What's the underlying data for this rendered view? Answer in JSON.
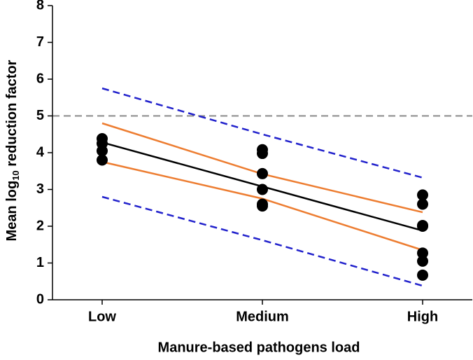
{
  "chart_data": {
    "type": "scatter",
    "xlabel": "Manure-based pathogens load",
    "ylabel": {
      "main": "Mean log",
      "sub": "10",
      "rest": " reduction factor"
    },
    "xlim": [
      0.69,
      3.31
    ],
    "xticks": [
      {
        "value": 1,
        "label": "Low"
      },
      {
        "value": 2,
        "label": "Medium"
      },
      {
        "value": 3,
        "label": "High"
      }
    ],
    "ylim": [
      0,
      8
    ],
    "yticks": [
      0,
      1,
      2,
      3,
      4,
      5,
      6,
      7,
      8
    ],
    "points": {
      "color": "#000000",
      "x": [
        1,
        1,
        1,
        1,
        2,
        2,
        2,
        2,
        2,
        2,
        3,
        3,
        3,
        3,
        3,
        3,
        3
      ],
      "values": [
        4.38,
        4.25,
        4.05,
        3.8,
        4.08,
        3.98,
        3.43,
        3.0,
        2.6,
        2.55,
        2.85,
        2.6,
        2.02,
        2.0,
        1.27,
        1.05,
        0.67
      ]
    },
    "lines": [
      {
        "color": "#2222cc",
        "dashed": true,
        "x": [
          1,
          2,
          3
        ],
        "values": [
          5.75,
          4.5,
          3.32
        ]
      },
      {
        "color": "#2222cc",
        "dashed": true,
        "x": [
          1,
          2,
          3
        ],
        "values": [
          2.8,
          1.62,
          0.38
        ]
      },
      {
        "color": "#ed7d31",
        "dashed": false,
        "x": [
          1,
          2,
          3
        ],
        "values": [
          4.8,
          3.42,
          2.38
        ]
      },
      {
        "color": "#ed7d31",
        "dashed": false,
        "x": [
          1,
          2,
          3
        ],
        "values": [
          3.75,
          2.75,
          1.35
        ]
      },
      {
        "color": "#000000",
        "dashed": false,
        "x": [
          1,
          2,
          3
        ],
        "values": [
          4.28,
          3.08,
          1.88
        ]
      }
    ],
    "reference_line": {
      "value": 5,
      "color": "#888888"
    }
  }
}
